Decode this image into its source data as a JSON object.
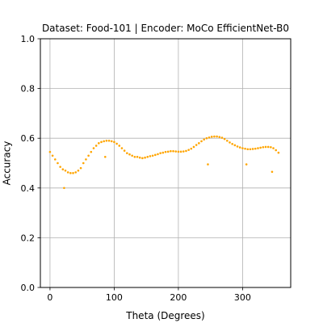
{
  "chart_data": {
    "type": "scatter",
    "title": "Dataset: Food-101 | Encoder: MoCo EfficientNet-B0",
    "xlabel": "Theta (Degrees)",
    "ylabel": "Accuracy",
    "xlim": [
      -15,
      375
    ],
    "ylim": [
      0.0,
      1.0
    ],
    "xticks": [
      0,
      100,
      200,
      300
    ],
    "xtick_labels": [
      "0",
      "100",
      "200",
      "300"
    ],
    "yticks": [
      0.0,
      0.2,
      0.4,
      0.6,
      0.8,
      1.0
    ],
    "ytick_labels": [
      "0.0",
      "0.2",
      "0.4",
      "0.6",
      "0.8",
      "1.0"
    ],
    "grid": true,
    "series_color": "#ffa500",
    "x": [
      0,
      4,
      8,
      12,
      16,
      20,
      24,
      28,
      32,
      36,
      40,
      44,
      48,
      52,
      56,
      60,
      64,
      68,
      72,
      76,
      80,
      84,
      88,
      92,
      96,
      100,
      104,
      108,
      112,
      116,
      120,
      124,
      128,
      132,
      136,
      140,
      144,
      148,
      152,
      156,
      160,
      164,
      168,
      172,
      176,
      180,
      184,
      188,
      192,
      196,
      200,
      204,
      208,
      212,
      216,
      220,
      224,
      228,
      232,
      236,
      240,
      244,
      248,
      252,
      256,
      260,
      264,
      268,
      272,
      276,
      280,
      284,
      288,
      292,
      296,
      300,
      304,
      308,
      312,
      316,
      320,
      324,
      328,
      332,
      336,
      340,
      344,
      348,
      352,
      356,
      22,
      86,
      246,
      306,
      346
    ],
    "y": [
      0.545,
      0.53,
      0.515,
      0.5,
      0.485,
      0.475,
      0.47,
      0.463,
      0.46,
      0.46,
      0.463,
      0.47,
      0.48,
      0.5,
      0.515,
      0.53,
      0.545,
      0.56,
      0.57,
      0.58,
      0.585,
      0.588,
      0.59,
      0.59,
      0.588,
      0.585,
      0.578,
      0.57,
      0.56,
      0.55,
      0.54,
      0.535,
      0.53,
      0.525,
      0.525,
      0.522,
      0.52,
      0.522,
      0.525,
      0.528,
      0.53,
      0.533,
      0.536,
      0.54,
      0.542,
      0.545,
      0.546,
      0.548,
      0.548,
      0.547,
      0.546,
      0.546,
      0.547,
      0.549,
      0.553,
      0.558,
      0.565,
      0.573,
      0.58,
      0.588,
      0.595,
      0.6,
      0.603,
      0.606,
      0.607,
      0.607,
      0.605,
      0.602,
      0.597,
      0.59,
      0.583,
      0.577,
      0.572,
      0.567,
      0.563,
      0.56,
      0.558,
      0.556,
      0.556,
      0.557,
      0.558,
      0.56,
      0.562,
      0.564,
      0.565,
      0.565,
      0.564,
      0.56,
      0.552,
      0.542,
      0.4,
      0.525,
      0.495,
      0.495,
      0.465
    ]
  }
}
